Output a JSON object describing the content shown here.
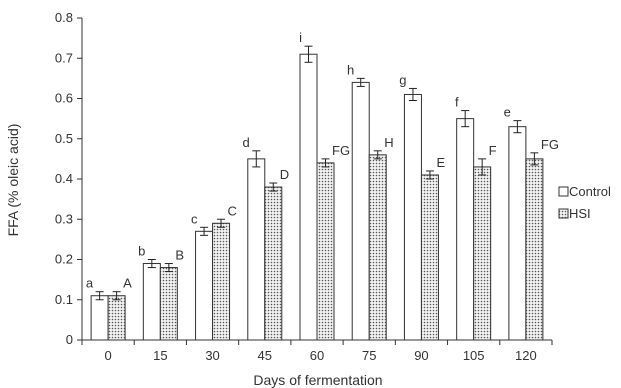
{
  "chart_data": {
    "type": "bar",
    "title": "",
    "xlabel": "Days of fermentation",
    "ylabel": "FFA (% oleic acid)",
    "ylim": [
      0,
      0.8
    ],
    "yticks": [
      "0",
      "0.1",
      "0.2",
      "0.3",
      "0.4",
      "0.5",
      "0.6",
      "0.7",
      "0.8"
    ],
    "grid": false,
    "legend_position": "right",
    "categories": [
      "0",
      "15",
      "30",
      "45",
      "60",
      "75",
      "90",
      "105",
      "120"
    ],
    "series": [
      {
        "name": "Control",
        "fill": "white",
        "values": [
          0.11,
          0.19,
          0.27,
          0.45,
          0.71,
          0.64,
          0.61,
          0.55,
          0.53
        ],
        "errors": [
          0.01,
          0.01,
          0.01,
          0.02,
          0.02,
          0.01,
          0.015,
          0.02,
          0.015
        ],
        "labels": [
          "a",
          "b",
          "c",
          "d",
          "i",
          "h",
          "g",
          "f",
          "e"
        ]
      },
      {
        "name": "HSI",
        "fill": "dotted",
        "values": [
          0.11,
          0.18,
          0.29,
          0.38,
          0.44,
          0.46,
          0.41,
          0.43,
          0.45
        ],
        "errors": [
          0.01,
          0.01,
          0.01,
          0.01,
          0.01,
          0.01,
          0.01,
          0.02,
          0.015
        ],
        "labels": [
          "A",
          "B",
          "C",
          "D",
          "FG",
          "H",
          "E",
          "F",
          "FG"
        ]
      }
    ],
    "colors": {
      "axis": "#333333",
      "bar_stroke": "#333333",
      "dot": "#555555"
    }
  }
}
